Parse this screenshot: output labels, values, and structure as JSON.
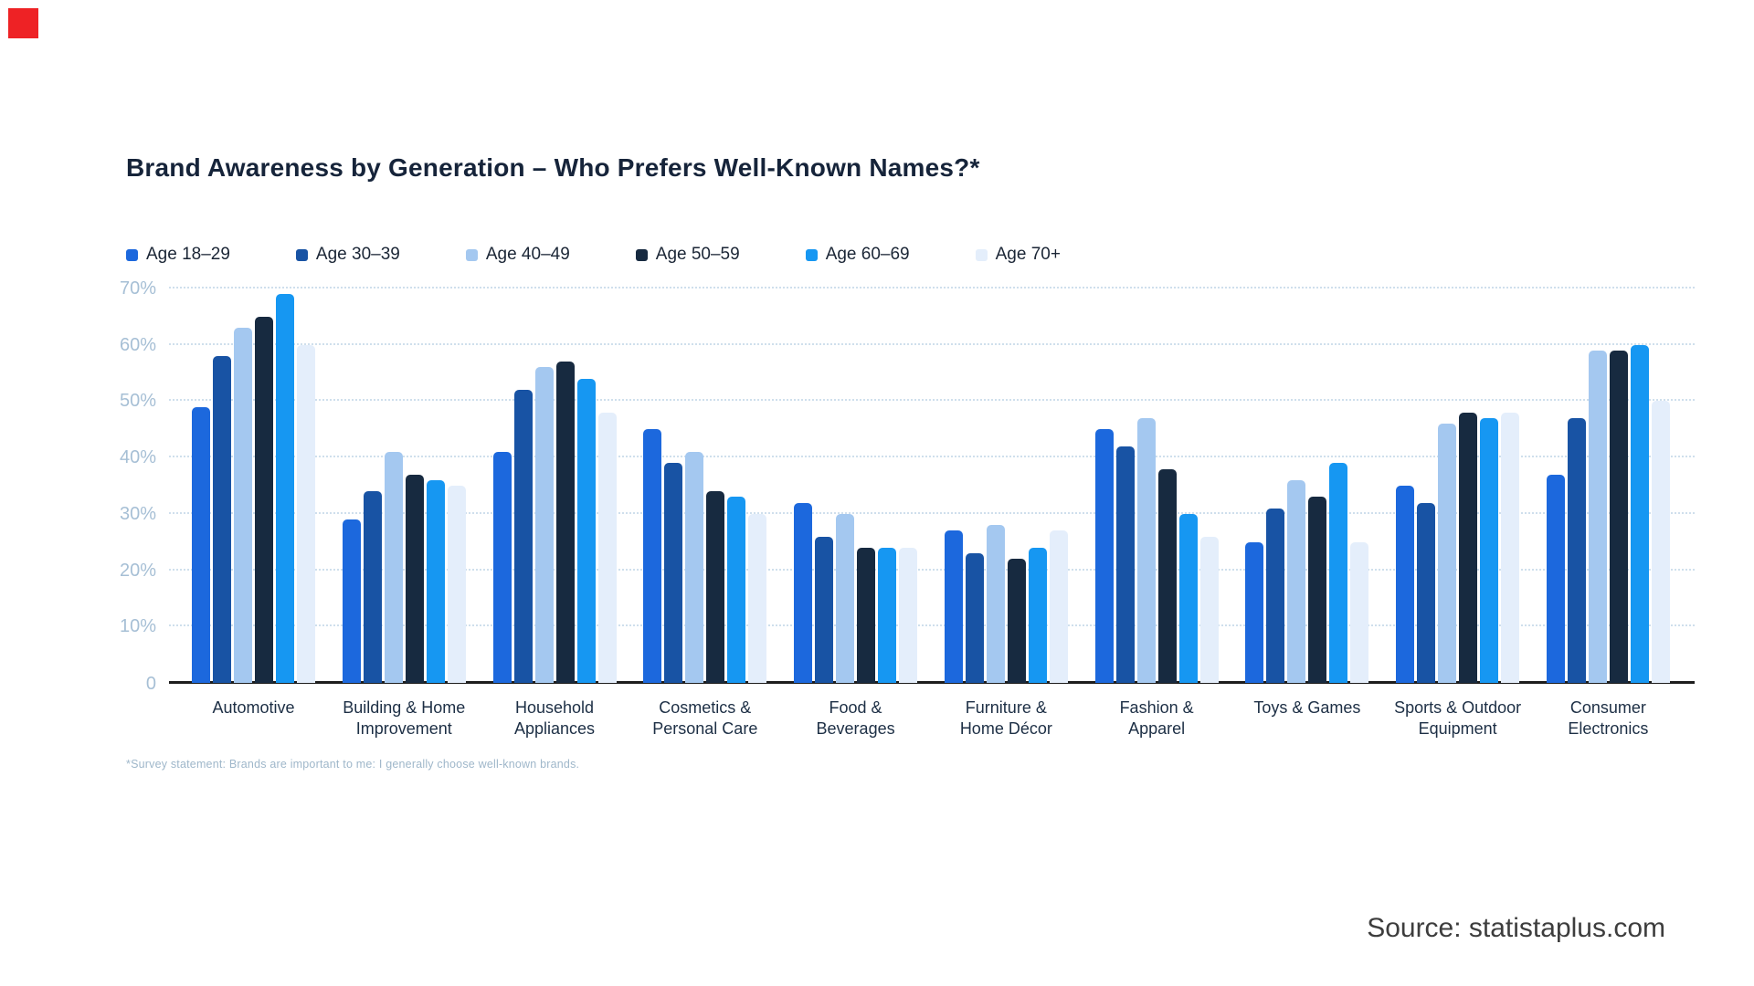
{
  "title": "Brand Awareness by Generation – Who Prefers Well-Known Names?*",
  "footnote": "*Survey statement: Brands are important to me: I generally choose well-known brands.",
  "source": "Source: statistaplus.com",
  "accent_color": "#ee2225",
  "chart_data": {
    "type": "bar",
    "title": "Brand Awareness by Generation – Who Prefers Well-Known Names?*",
    "ylabel": "",
    "xlabel": "",
    "ylim": [
      0,
      70
    ],
    "yticks": [
      "0",
      "10%",
      "20%",
      "30%",
      "40%",
      "50%",
      "60%",
      "70%"
    ],
    "grid": "dotted-horizontal",
    "legend_position": "top-left",
    "categories": [
      "Automotive",
      "Building & Home\nImprovement",
      "Household\nAppliances",
      "Cosmetics &\nPersonal Care",
      "Food &\nBeverages",
      "Furniture &\nHome Décor",
      "Fashion &\nApparel",
      "Toys & Games",
      "Sports & Outdoor\nEquipment",
      "Consumer\nElectronics"
    ],
    "series": [
      {
        "name": "Age 18–29",
        "color": "#1c68dd",
        "values": [
          49,
          29,
          41,
          45,
          32,
          27,
          45,
          25,
          35,
          37
        ]
      },
      {
        "name": "Age 30–39",
        "color": "#1853a4",
        "values": [
          58,
          34,
          52,
          39,
          26,
          23,
          42,
          31,
          32,
          47
        ]
      },
      {
        "name": "Age 40–49",
        "color": "#a4c8f0",
        "values": [
          63,
          41,
          56,
          41,
          30,
          28,
          47,
          36,
          46,
          59
        ]
      },
      {
        "name": "Age 50–59",
        "color": "#172a40",
        "values": [
          65,
          37,
          57,
          34,
          24,
          22,
          38,
          33,
          48,
          59
        ]
      },
      {
        "name": "Age 60–69",
        "color": "#1697f2",
        "values": [
          69,
          36,
          54,
          33,
          24,
          24,
          30,
          39,
          47,
          60
        ]
      },
      {
        "name": "Age 70+",
        "color": "#e4eefb",
        "values": [
          60,
          35,
          48,
          30,
          24,
          27,
          26,
          25,
          48,
          50
        ]
      }
    ]
  }
}
